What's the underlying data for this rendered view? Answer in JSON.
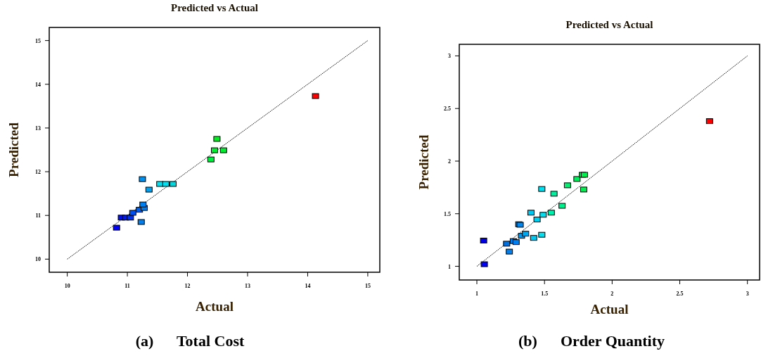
{
  "chart_data": [
    {
      "type": "scatter",
      "title": "Predicted vs Actual",
      "xlabel": "Actual",
      "ylabel": "Predicted",
      "annotations": [
        "(a)      Total Cost"
      ],
      "xlim": [
        9.7,
        15.2
      ],
      "ylim": [
        9.7,
        15.3
      ],
      "xticks": [
        10,
        11,
        12,
        13,
        14,
        15
      ],
      "yticks": [
        10,
        11,
        12,
        13,
        14,
        15
      ],
      "grid": false,
      "series": [
        {
          "marker": "square",
          "x": [
            10.82,
            10.9,
            10.97,
            11.05,
            11.09,
            11.2,
            11.28,
            11.26,
            11.23,
            11.25,
            11.36,
            11.54,
            11.64,
            11.76,
            12.39,
            12.45,
            12.6,
            12.49,
            14.13
          ],
          "values": [
            10.72,
            10.95,
            10.95,
            10.95,
            11.06,
            11.13,
            11.17,
            11.25,
            10.85,
            11.83,
            11.59,
            11.72,
            11.72,
            11.72,
            12.28,
            12.49,
            12.49,
            12.75,
            13.73
          ],
          "colors": [
            "#0000ff",
            "#0010f0",
            "#0018f0",
            "#0030f0",
            "#0050f0",
            "#0060f0",
            "#0080f0",
            "#0080f0",
            "#0080f0",
            "#0090f0",
            "#00a0f0",
            "#00e0f0",
            "#00e0f0",
            "#00d8e0",
            "#00f040",
            "#00f030",
            "#00f030",
            "#00f020",
            "#ff0000"
          ]
        },
        {
          "type": "line",
          "x": [
            10,
            15
          ],
          "values": [
            10,
            15
          ],
          "color": "#000000",
          "line_style": "dotted"
        }
      ]
    },
    {
      "type": "scatter",
      "title": "Predicted vs Actual",
      "xlabel": "Actual",
      "ylabel": "Predicted",
      "annotations": [
        "(b)      Order Quantity"
      ],
      "xlim": [
        0.87,
        3.09
      ],
      "ylim": [
        0.87,
        3.11
      ],
      "xticks": [
        1,
        1.5,
        2,
        2.5,
        3
      ],
      "yticks": [
        1,
        1.5,
        2,
        2.5,
        3
      ],
      "grid": false,
      "series": [
        {
          "marker": "square",
          "x": [
            1.05,
            1.055,
            1.22,
            1.24,
            1.27,
            1.29,
            1.31,
            1.32,
            1.33,
            1.36,
            1.4,
            1.42,
            1.445,
            1.48,
            1.48,
            1.49,
            1.55,
            1.57,
            1.63,
            1.67,
            1.74,
            1.78,
            1.795,
            1.79,
            2.72
          ],
          "values": [
            1.245,
            1.02,
            1.215,
            1.14,
            1.24,
            1.23,
            1.4,
            1.395,
            1.29,
            1.31,
            1.51,
            1.27,
            1.445,
            1.735,
            1.3,
            1.49,
            1.51,
            1.69,
            1.575,
            1.77,
            1.83,
            1.87,
            1.87,
            1.73,
            2.38
          ],
          "colors": [
            "#0000e0",
            "#0000ff",
            "#0070e0",
            "#0080f0",
            "#0080f0",
            "#0080f0",
            "#0088f0",
            "#0088f0",
            "#0098f0",
            "#00a8f0",
            "#00c8f0",
            "#00c8f0",
            "#00d0f0",
            "#00e0f0",
            "#00e0f0",
            "#00e0f0",
            "#00f0b0",
            "#00f0a0",
            "#00f090",
            "#00f070",
            "#00f060",
            "#00f050",
            "#00f050",
            "#00f050",
            "#ff0000"
          ]
        },
        {
          "type": "line",
          "x": [
            1,
            3
          ],
          "values": [
            1,
            3
          ],
          "color": "#000000",
          "line_style": "dotted"
        }
      ]
    }
  ]
}
